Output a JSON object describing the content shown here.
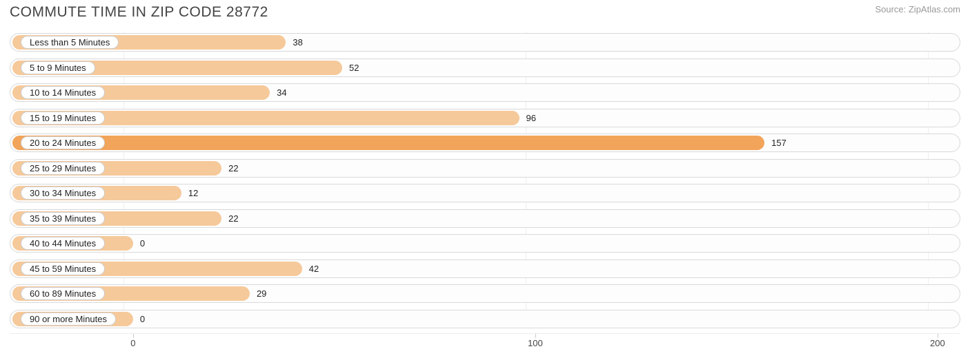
{
  "header": {
    "title": "COMMUTE TIME IN ZIP CODE 28772",
    "source": "Source: ZipAtlas.com"
  },
  "chart": {
    "type": "bar-horizontal",
    "xaxis": {
      "min": -30,
      "max": 205,
      "ticks": [
        0,
        100,
        200
      ]
    },
    "track_border_color": "#d9d9d9",
    "grid_color": "#eeeeee",
    "bar_color_default": "#f6c99a",
    "bar_color_highlight": "#f2a45a",
    "label_pill_bg": "#ffffff",
    "label_pill_border": "#cccccc",
    "value_label_color": "#222222",
    "rows": [
      {
        "label": "Less than 5 Minutes",
        "value": 38,
        "highlight": false
      },
      {
        "label": "5 to 9 Minutes",
        "value": 52,
        "highlight": false
      },
      {
        "label": "10 to 14 Minutes",
        "value": 34,
        "highlight": false
      },
      {
        "label": "15 to 19 Minutes",
        "value": 96,
        "highlight": false
      },
      {
        "label": "20 to 24 Minutes",
        "value": 157,
        "highlight": true
      },
      {
        "label": "25 to 29 Minutes",
        "value": 22,
        "highlight": false
      },
      {
        "label": "30 to 34 Minutes",
        "value": 12,
        "highlight": false
      },
      {
        "label": "35 to 39 Minutes",
        "value": 22,
        "highlight": false
      },
      {
        "label": "40 to 44 Minutes",
        "value": 0,
        "highlight": false
      },
      {
        "label": "45 to 59 Minutes",
        "value": 42,
        "highlight": false
      },
      {
        "label": "60 to 89 Minutes",
        "value": 29,
        "highlight": false
      },
      {
        "label": "90 or more Minutes",
        "value": 0,
        "highlight": false
      }
    ]
  }
}
